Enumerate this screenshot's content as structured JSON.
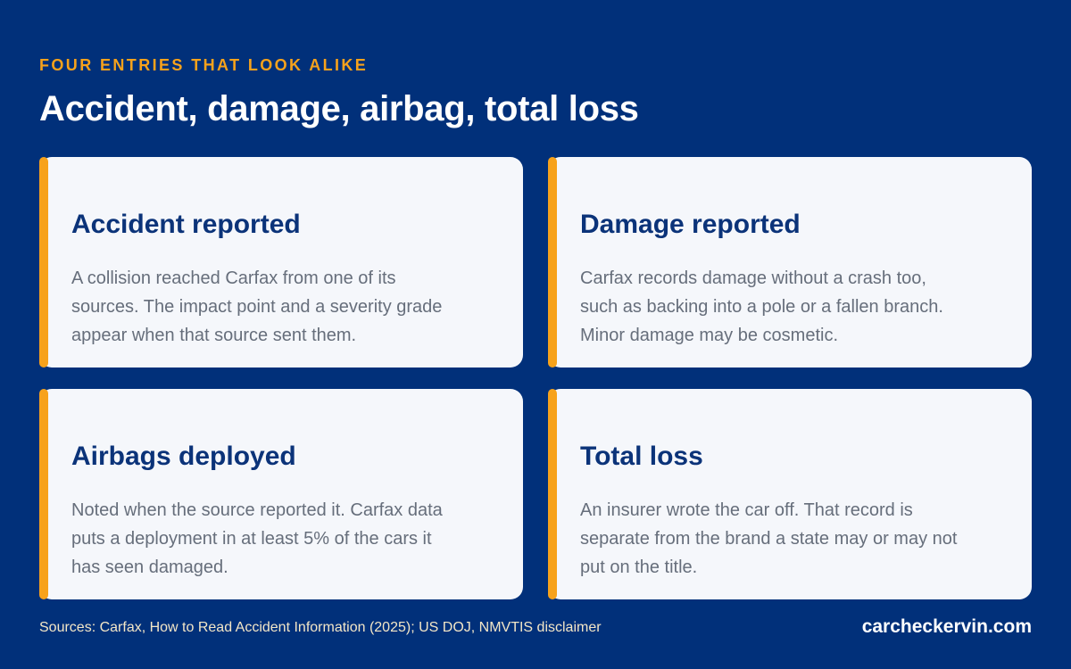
{
  "header": {
    "eyebrow": "FOUR ENTRIES THAT LOOK ALIKE",
    "title": "Accident, damage, airbag, total loss"
  },
  "cards": [
    {
      "title": "Accident reported",
      "body": "A collision reached Carfax from one of its sources. The impact point and a severity grade appear when that source sent them."
    },
    {
      "title": "Damage reported",
      "body": "Carfax records damage without a crash too, such as backing into a pole or a fallen branch. Minor damage may be cosmetic."
    },
    {
      "title": "Airbags deployed",
      "body": "Noted when the source reported it. Carfax data puts a deployment in at least 5% of the cars it has seen damaged."
    },
    {
      "title": "Total loss",
      "body": "An insurer wrote the car off. That record is separate from the brand a state may or may not put on the title."
    }
  ],
  "footer": {
    "sources": "Sources: Carfax, How to Read Accident Information (2025); US DOJ, NMVTIS disclaimer",
    "site": "carcheckervin.com"
  },
  "colors": {
    "background": "#01307a",
    "accent": "#f7a21b",
    "card": "#f5f7fb",
    "card_title": "#0b3379",
    "card_body": "#666e7b"
  }
}
